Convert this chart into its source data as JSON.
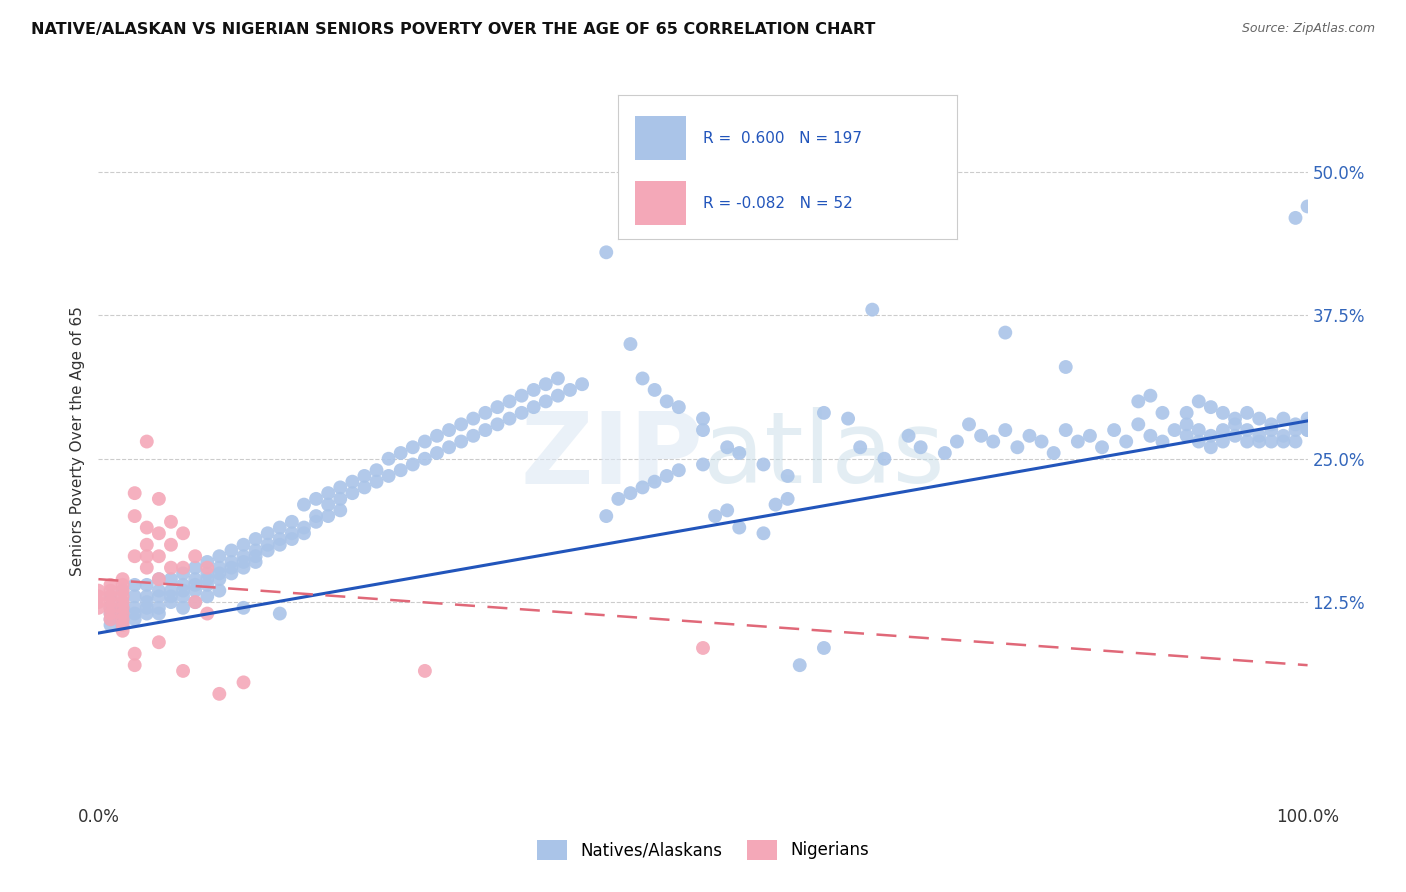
{
  "title": "NATIVE/ALASKAN VS NIGERIAN SENIORS POVERTY OVER THE AGE OF 65 CORRELATION CHART",
  "source": "Source: ZipAtlas.com",
  "ylabel": "Seniors Poverty Over the Age of 65",
  "xlim": [
    0.0,
    1.0
  ],
  "ylim": [
    -0.05,
    0.58
  ],
  "xticks": [
    0.0,
    0.1,
    0.2,
    0.3,
    0.4,
    0.5,
    0.6,
    0.7,
    0.8,
    0.9,
    1.0
  ],
  "xticklabels": [
    "0.0%",
    "",
    "",
    "",
    "",
    "",
    "",
    "",
    "",
    "",
    "100.0%"
  ],
  "ytick_positions": [
    0.0,
    0.125,
    0.25,
    0.375,
    0.5
  ],
  "ytick_labels": [
    "",
    "12.5%",
    "25.0%",
    "37.5%",
    "50.0%"
  ],
  "native_color": "#aac4e8",
  "nigerian_color": "#f4a8b8",
  "native_line_color": "#2255bb",
  "nigerian_line_color": "#e06878",
  "native_R": 0.6,
  "native_N": 197,
  "nigerian_R": -0.082,
  "nigerian_N": 52,
  "native_slope": 0.185,
  "native_intercept": 0.098,
  "nigerian_slope": -0.075,
  "nigerian_intercept": 0.145,
  "watermark": "ZIPatlas",
  "background_color": "#ffffff",
  "grid_color": "#cccccc",
  "native_points": [
    [
      0.01,
      0.13
    ],
    [
      0.01,
      0.12
    ],
    [
      0.01,
      0.115
    ],
    [
      0.01,
      0.11
    ],
    [
      0.01,
      0.105
    ],
    [
      0.02,
      0.135
    ],
    [
      0.02,
      0.125
    ],
    [
      0.02,
      0.12
    ],
    [
      0.02,
      0.115
    ],
    [
      0.02,
      0.11
    ],
    [
      0.02,
      0.105
    ],
    [
      0.03,
      0.14
    ],
    [
      0.03,
      0.13
    ],
    [
      0.03,
      0.12
    ],
    [
      0.03,
      0.115
    ],
    [
      0.03,
      0.11
    ],
    [
      0.04,
      0.14
    ],
    [
      0.04,
      0.13
    ],
    [
      0.04,
      0.125
    ],
    [
      0.04,
      0.12
    ],
    [
      0.04,
      0.115
    ],
    [
      0.05,
      0.145
    ],
    [
      0.05,
      0.135
    ],
    [
      0.05,
      0.13
    ],
    [
      0.05,
      0.12
    ],
    [
      0.05,
      0.115
    ],
    [
      0.06,
      0.145
    ],
    [
      0.06,
      0.135
    ],
    [
      0.06,
      0.13
    ],
    [
      0.06,
      0.125
    ],
    [
      0.07,
      0.15
    ],
    [
      0.07,
      0.14
    ],
    [
      0.07,
      0.135
    ],
    [
      0.07,
      0.13
    ],
    [
      0.07,
      0.12
    ],
    [
      0.08,
      0.155
    ],
    [
      0.08,
      0.145
    ],
    [
      0.08,
      0.14
    ],
    [
      0.08,
      0.135
    ],
    [
      0.08,
      0.125
    ],
    [
      0.09,
      0.16
    ],
    [
      0.09,
      0.15
    ],
    [
      0.09,
      0.145
    ],
    [
      0.09,
      0.14
    ],
    [
      0.09,
      0.13
    ],
    [
      0.1,
      0.165
    ],
    [
      0.1,
      0.155
    ],
    [
      0.1,
      0.15
    ],
    [
      0.1,
      0.145
    ],
    [
      0.1,
      0.135
    ],
    [
      0.11,
      0.17
    ],
    [
      0.11,
      0.16
    ],
    [
      0.11,
      0.155
    ],
    [
      0.11,
      0.15
    ],
    [
      0.12,
      0.175
    ],
    [
      0.12,
      0.165
    ],
    [
      0.12,
      0.16
    ],
    [
      0.12,
      0.155
    ],
    [
      0.13,
      0.18
    ],
    [
      0.13,
      0.17
    ],
    [
      0.13,
      0.165
    ],
    [
      0.13,
      0.16
    ],
    [
      0.14,
      0.185
    ],
    [
      0.14,
      0.175
    ],
    [
      0.14,
      0.17
    ],
    [
      0.15,
      0.19
    ],
    [
      0.15,
      0.18
    ],
    [
      0.15,
      0.175
    ],
    [
      0.16,
      0.195
    ],
    [
      0.16,
      0.185
    ],
    [
      0.16,
      0.18
    ],
    [
      0.17,
      0.21
    ],
    [
      0.17,
      0.19
    ],
    [
      0.17,
      0.185
    ],
    [
      0.18,
      0.215
    ],
    [
      0.18,
      0.2
    ],
    [
      0.18,
      0.195
    ],
    [
      0.19,
      0.22
    ],
    [
      0.19,
      0.21
    ],
    [
      0.19,
      0.2
    ],
    [
      0.2,
      0.225
    ],
    [
      0.2,
      0.215
    ],
    [
      0.2,
      0.205
    ],
    [
      0.21,
      0.23
    ],
    [
      0.21,
      0.22
    ],
    [
      0.22,
      0.235
    ],
    [
      0.22,
      0.225
    ],
    [
      0.23,
      0.24
    ],
    [
      0.23,
      0.23
    ],
    [
      0.24,
      0.25
    ],
    [
      0.24,
      0.235
    ],
    [
      0.25,
      0.255
    ],
    [
      0.25,
      0.24
    ],
    [
      0.26,
      0.26
    ],
    [
      0.26,
      0.245
    ],
    [
      0.27,
      0.265
    ],
    [
      0.27,
      0.25
    ],
    [
      0.28,
      0.27
    ],
    [
      0.28,
      0.255
    ],
    [
      0.29,
      0.275
    ],
    [
      0.29,
      0.26
    ],
    [
      0.3,
      0.28
    ],
    [
      0.3,
      0.265
    ],
    [
      0.31,
      0.285
    ],
    [
      0.31,
      0.27
    ],
    [
      0.32,
      0.29
    ],
    [
      0.32,
      0.275
    ],
    [
      0.33,
      0.295
    ],
    [
      0.33,
      0.28
    ],
    [
      0.34,
      0.3
    ],
    [
      0.34,
      0.285
    ],
    [
      0.35,
      0.305
    ],
    [
      0.35,
      0.29
    ],
    [
      0.36,
      0.31
    ],
    [
      0.36,
      0.295
    ],
    [
      0.37,
      0.315
    ],
    [
      0.37,
      0.3
    ],
    [
      0.38,
      0.32
    ],
    [
      0.38,
      0.305
    ],
    [
      0.39,
      0.31
    ],
    [
      0.4,
      0.315
    ],
    [
      0.42,
      0.2
    ],
    [
      0.43,
      0.215
    ],
    [
      0.44,
      0.22
    ],
    [
      0.45,
      0.225
    ],
    [
      0.46,
      0.23
    ],
    [
      0.47,
      0.235
    ],
    [
      0.48,
      0.24
    ],
    [
      0.5,
      0.245
    ],
    [
      0.51,
      0.2
    ],
    [
      0.52,
      0.205
    ],
    [
      0.53,
      0.19
    ],
    [
      0.55,
      0.185
    ],
    [
      0.56,
      0.21
    ],
    [
      0.57,
      0.215
    ],
    [
      0.58,
      0.07
    ],
    [
      0.6,
      0.085
    ],
    [
      0.45,
      0.32
    ],
    [
      0.46,
      0.31
    ],
    [
      0.47,
      0.3
    ],
    [
      0.48,
      0.295
    ],
    [
      0.5,
      0.285
    ],
    [
      0.5,
      0.275
    ],
    [
      0.52,
      0.26
    ],
    [
      0.53,
      0.255
    ],
    [
      0.55,
      0.245
    ],
    [
      0.57,
      0.235
    ],
    [
      0.42,
      0.43
    ],
    [
      0.44,
      0.35
    ],
    [
      0.6,
      0.29
    ],
    [
      0.62,
      0.285
    ],
    [
      0.63,
      0.26
    ],
    [
      0.65,
      0.25
    ],
    [
      0.67,
      0.27
    ],
    [
      0.68,
      0.26
    ],
    [
      0.7,
      0.255
    ],
    [
      0.71,
      0.265
    ],
    [
      0.72,
      0.28
    ],
    [
      0.73,
      0.27
    ],
    [
      0.74,
      0.265
    ],
    [
      0.75,
      0.275
    ],
    [
      0.76,
      0.26
    ],
    [
      0.77,
      0.27
    ],
    [
      0.78,
      0.265
    ],
    [
      0.79,
      0.255
    ],
    [
      0.8,
      0.275
    ],
    [
      0.81,
      0.265
    ],
    [
      0.82,
      0.27
    ],
    [
      0.83,
      0.26
    ],
    [
      0.84,
      0.275
    ],
    [
      0.85,
      0.265
    ],
    [
      0.86,
      0.28
    ],
    [
      0.87,
      0.27
    ],
    [
      0.88,
      0.265
    ],
    [
      0.89,
      0.275
    ],
    [
      0.9,
      0.28
    ],
    [
      0.9,
      0.27
    ],
    [
      0.91,
      0.275
    ],
    [
      0.91,
      0.265
    ],
    [
      0.92,
      0.27
    ],
    [
      0.92,
      0.26
    ],
    [
      0.93,
      0.275
    ],
    [
      0.93,
      0.265
    ],
    [
      0.94,
      0.28
    ],
    [
      0.94,
      0.27
    ],
    [
      0.95,
      0.275
    ],
    [
      0.95,
      0.265
    ],
    [
      0.96,
      0.27
    ],
    [
      0.96,
      0.265
    ],
    [
      0.97,
      0.275
    ],
    [
      0.97,
      0.265
    ],
    [
      0.98,
      0.27
    ],
    [
      0.98,
      0.265
    ],
    [
      0.99,
      0.275
    ],
    [
      0.99,
      0.265
    ],
    [
      1.0,
      0.47
    ],
    [
      0.99,
      0.46
    ],
    [
      1.0,
      0.28
    ],
    [
      1.0,
      0.275
    ],
    [
      0.64,
      0.38
    ],
    [
      0.75,
      0.36
    ],
    [
      0.8,
      0.33
    ],
    [
      0.86,
      0.3
    ],
    [
      0.87,
      0.305
    ],
    [
      0.88,
      0.29
    ],
    [
      0.9,
      0.29
    ],
    [
      0.91,
      0.3
    ],
    [
      0.92,
      0.295
    ],
    [
      0.93,
      0.29
    ],
    [
      0.94,
      0.285
    ],
    [
      0.95,
      0.29
    ],
    [
      0.96,
      0.285
    ],
    [
      0.97,
      0.28
    ],
    [
      0.98,
      0.285
    ],
    [
      0.99,
      0.28
    ],
    [
      1.0,
      0.285
    ],
    [
      1.0,
      0.275
    ],
    [
      0.12,
      0.12
    ],
    [
      0.15,
      0.115
    ]
  ],
  "nigerian_points": [
    [
      0.0,
      0.135
    ],
    [
      0.0,
      0.13
    ],
    [
      0.0,
      0.125
    ],
    [
      0.0,
      0.12
    ],
    [
      0.01,
      0.14
    ],
    [
      0.01,
      0.135
    ],
    [
      0.01,
      0.13
    ],
    [
      0.01,
      0.125
    ],
    [
      0.01,
      0.12
    ],
    [
      0.01,
      0.115
    ],
    [
      0.01,
      0.11
    ],
    [
      0.02,
      0.145
    ],
    [
      0.02,
      0.14
    ],
    [
      0.02,
      0.135
    ],
    [
      0.02,
      0.13
    ],
    [
      0.02,
      0.125
    ],
    [
      0.02,
      0.12
    ],
    [
      0.02,
      0.115
    ],
    [
      0.02,
      0.11
    ],
    [
      0.02,
      0.105
    ],
    [
      0.02,
      0.1
    ],
    [
      0.03,
      0.22
    ],
    [
      0.03,
      0.2
    ],
    [
      0.03,
      0.165
    ],
    [
      0.03,
      0.08
    ],
    [
      0.03,
      0.07
    ],
    [
      0.04,
      0.265
    ],
    [
      0.04,
      0.19
    ],
    [
      0.04,
      0.175
    ],
    [
      0.04,
      0.165
    ],
    [
      0.04,
      0.155
    ],
    [
      0.05,
      0.215
    ],
    [
      0.05,
      0.185
    ],
    [
      0.05,
      0.165
    ],
    [
      0.05,
      0.145
    ],
    [
      0.05,
      0.09
    ],
    [
      0.06,
      0.195
    ],
    [
      0.06,
      0.175
    ],
    [
      0.06,
      0.155
    ],
    [
      0.07,
      0.185
    ],
    [
      0.07,
      0.155
    ],
    [
      0.07,
      0.065
    ],
    [
      0.08,
      0.165
    ],
    [
      0.08,
      0.125
    ],
    [
      0.09,
      0.155
    ],
    [
      0.09,
      0.115
    ],
    [
      0.1,
      0.045
    ],
    [
      0.12,
      0.055
    ],
    [
      0.27,
      0.065
    ],
    [
      0.5,
      0.085
    ]
  ]
}
